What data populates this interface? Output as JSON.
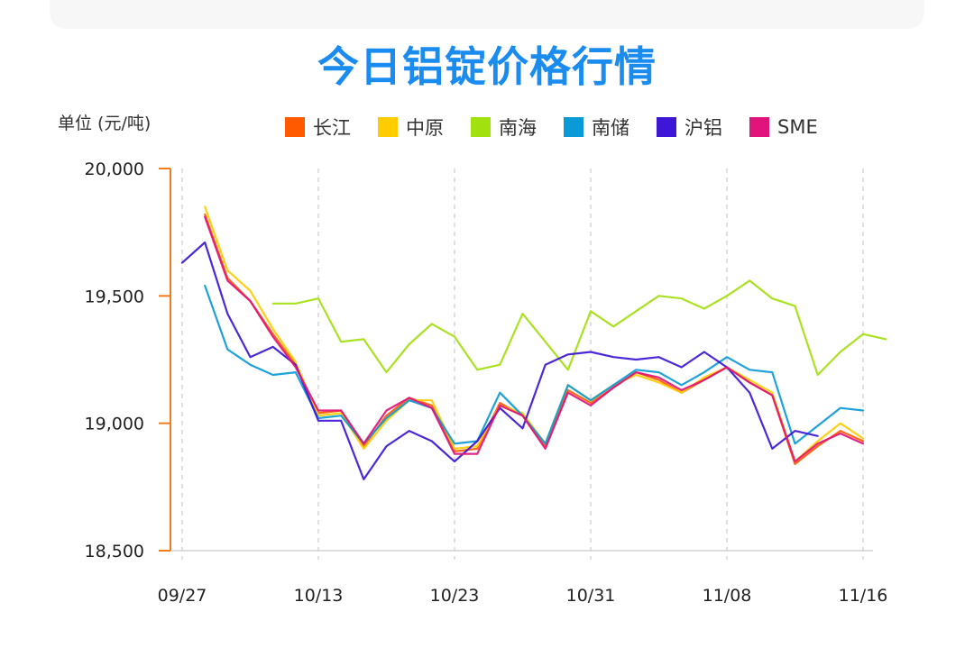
{
  "header": {
    "title": "今日铝锭价格行情"
  },
  "chart_data": {
    "type": "line",
    "title": "今日铝锭价格行情",
    "ylabel": "单位 (元/吨)",
    "xlabel": "",
    "ylim": [
      18500,
      20000
    ],
    "yticks": [
      "20,000",
      "19,500",
      "19,000",
      "18,500"
    ],
    "ytick_values": [
      20000,
      19500,
      19000,
      18500
    ],
    "xtick_labels": [
      "09/27",
      "10/13",
      "10/23",
      "10/31",
      "11/08",
      "11/16"
    ],
    "xtick_indices": [
      0,
      6,
      12,
      18,
      24,
      30
    ],
    "grid": "vertical dashed",
    "legend_position": "top",
    "n_points": 31,
    "series": [
      {
        "name": "长江",
        "color": "#ff5a00",
        "start": 1,
        "values": [
          19820,
          19570,
          19480,
          19350,
          19230,
          19040,
          19050,
          18910,
          19030,
          19100,
          19070,
          18890,
          18900,
          19080,
          19030,
          18910,
          19130,
          19080,
          19140,
          19200,
          19170,
          19120,
          19170,
          19220,
          19160,
          19110,
          18840,
          18910,
          18970,
          18930
        ]
      },
      {
        "name": "中原",
        "color": "#ffcc00",
        "start": 1,
        "values": [
          19850,
          19600,
          19520,
          19370,
          19240,
          19030,
          19040,
          18900,
          19010,
          19090,
          19090,
          18900,
          18910,
          19070,
          19040,
          18920,
          19150,
          19090,
          19150,
          19190,
          19160,
          19120,
          19180,
          19220,
          19170,
          19120,
          18850,
          18930,
          19000,
          18940
        ]
      },
      {
        "name": "南海",
        "color": "#a3e00f",
        "start": 4,
        "values": [
          19470,
          19470,
          19490,
          19320,
          19330,
          19200,
          19310,
          19390,
          19340,
          19210,
          19230,
          19430,
          19320,
          19210,
          19440,
          19380,
          19440,
          19500,
          19490,
          19450,
          19500,
          19560,
          19490,
          19460,
          19190,
          19280,
          19350,
          19330
        ]
      },
      {
        "name": "南储",
        "color": "#0a9ad6",
        "start": 1,
        "values": [
          19540,
          19290,
          19230,
          19190,
          19200,
          19020,
          19030,
          18920,
          19020,
          19090,
          19060,
          18920,
          18930,
          19120,
          19030,
          18920,
          19150,
          19090,
          19150,
          19210,
          19200,
          19150,
          19200,
          19260,
          19210,
          19200,
          18920,
          18990,
          19060,
          19050
        ]
      },
      {
        "name": "沪铝",
        "color": "#3d16d6",
        "start": 0,
        "values": [
          19630,
          19710,
          19430,
          19260,
          19300,
          19230,
          19010,
          19010,
          18780,
          18910,
          18970,
          18930,
          18850,
          18930,
          19060,
          18980,
          19230,
          19270,
          19280,
          19260,
          19250,
          19260,
          19220,
          19280,
          19220,
          19120,
          18900,
          18970,
          18950
        ]
      },
      {
        "name": "SME",
        "color": "#e0147a",
        "start": 1,
        "values": [
          19810,
          19560,
          19480,
          19340,
          19220,
          19050,
          19050,
          18920,
          19050,
          19100,
          19060,
          18880,
          18880,
          19070,
          19030,
          18900,
          19120,
          19070,
          19140,
          19200,
          19180,
          19130,
          19170,
          19220,
          19160,
          19110,
          18850,
          18920,
          18960,
          18920
        ]
      }
    ]
  }
}
